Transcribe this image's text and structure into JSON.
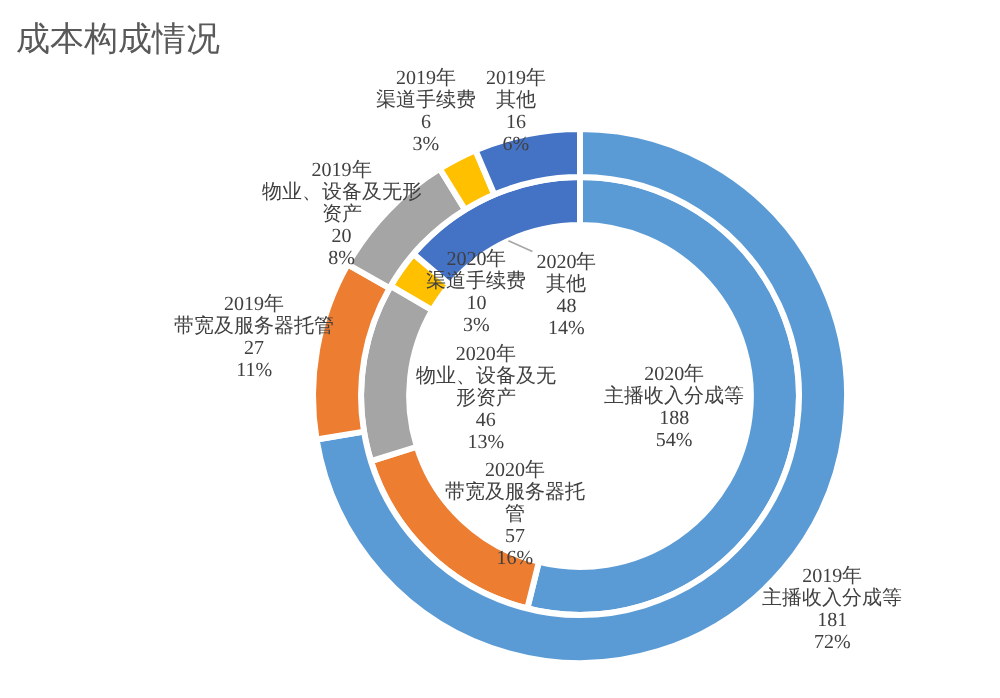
{
  "chart_data": {
    "type": "donut",
    "title": "成本构成情况",
    "categories": [
      "主播收入分成等",
      "带宽及服务器托管",
      "物业、设备及无形资产",
      "渠道手续费",
      "其他"
    ],
    "colors": [
      "#5b9bd5",
      "#ed7d31",
      "#a5a5a5",
      "#ffc000",
      "#4472c4"
    ],
    "series": [
      {
        "name": "2019年",
        "values": [
          181,
          27,
          20,
          6,
          16
        ],
        "value_labels": [
          "181\n72%",
          "27\n11%",
          "20\n8%",
          "6\n3%",
          "16\n6%"
        ]
      },
      {
        "name": "2020年",
        "values": [
          188,
          57,
          46,
          10,
          48
        ],
        "value_labels": [
          "188\n54%",
          "57\n16%",
          "46\n13%",
          "10\n3%",
          "48\n14%"
        ]
      }
    ]
  }
}
